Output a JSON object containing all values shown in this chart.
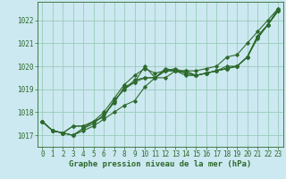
{
  "title": "Graphe pression niveau de la mer (hPa)",
  "background_color": "#cce8f0",
  "grid_color": "#99ccbb",
  "line_color": "#2d6a2d",
  "xlim": [
    -0.5,
    23.5
  ],
  "ylim": [
    1016.5,
    1022.8
  ],
  "yticks": [
    1017,
    1018,
    1019,
    1020,
    1021,
    1022
  ],
  "xticks": [
    0,
    1,
    2,
    3,
    4,
    5,
    6,
    7,
    8,
    9,
    10,
    11,
    12,
    13,
    14,
    15,
    16,
    17,
    18,
    19,
    20,
    21,
    22,
    23
  ],
  "series": [
    [
      1017.6,
      1017.2,
      1017.1,
      1017.0,
      1017.2,
      1017.4,
      1017.7,
      1018.0,
      1018.3,
      1018.5,
      1019.1,
      1019.5,
      1019.5,
      1019.8,
      1019.7,
      1019.6,
      1019.7,
      1019.8,
      1019.9,
      1020.0,
      1020.4,
      1021.2,
      1021.8,
      1022.5
    ],
    [
      1017.6,
      1017.2,
      1017.1,
      1017.0,
      1017.3,
      1017.5,
      1017.9,
      1018.4,
      1019.1,
      1019.3,
      1020.0,
      1019.5,
      1019.8,
      1019.9,
      1019.7,
      1019.6,
      1019.7,
      1019.8,
      1020.0,
      1020.0,
      1020.4,
      1021.3,
      1021.8,
      1022.4
    ],
    [
      1017.6,
      1017.2,
      1017.1,
      1017.4,
      1017.4,
      1017.6,
      1017.8,
      1018.5,
      1019.0,
      1019.4,
      1019.5,
      1019.5,
      1019.9,
      1019.8,
      1019.6,
      1019.6,
      1019.7,
      1019.8,
      1019.9,
      1020.0,
      1020.4,
      1021.3,
      1021.8,
      1022.4
    ],
    [
      1017.6,
      1017.2,
      1017.1,
      1017.4,
      1017.4,
      1017.6,
      1017.8,
      1018.5,
      1019.0,
      1019.3,
      1019.5,
      1019.5,
      1019.8,
      1019.8,
      1019.8,
      1019.6,
      1019.7,
      1019.8,
      1019.9,
      1020.0,
      1020.4,
      1021.3,
      1021.8,
      1022.4
    ]
  ],
  "series_diverge": [
    1017.6,
    1017.2,
    1017.1,
    1017.0,
    1017.3,
    1017.6,
    1018.0,
    1018.6,
    1019.2,
    1019.6,
    1019.9,
    1019.7,
    1019.8,
    1019.8,
    1019.8,
    1019.8,
    1019.9,
    1020.0,
    1020.4,
    1020.5,
    1021.0,
    1021.5,
    1022.0,
    1022.5
  ],
  "marker": "D",
  "markersize": 1.8,
  "linewidth": 0.8,
  "title_fontsize": 6.5,
  "tick_fontsize": 5.5
}
